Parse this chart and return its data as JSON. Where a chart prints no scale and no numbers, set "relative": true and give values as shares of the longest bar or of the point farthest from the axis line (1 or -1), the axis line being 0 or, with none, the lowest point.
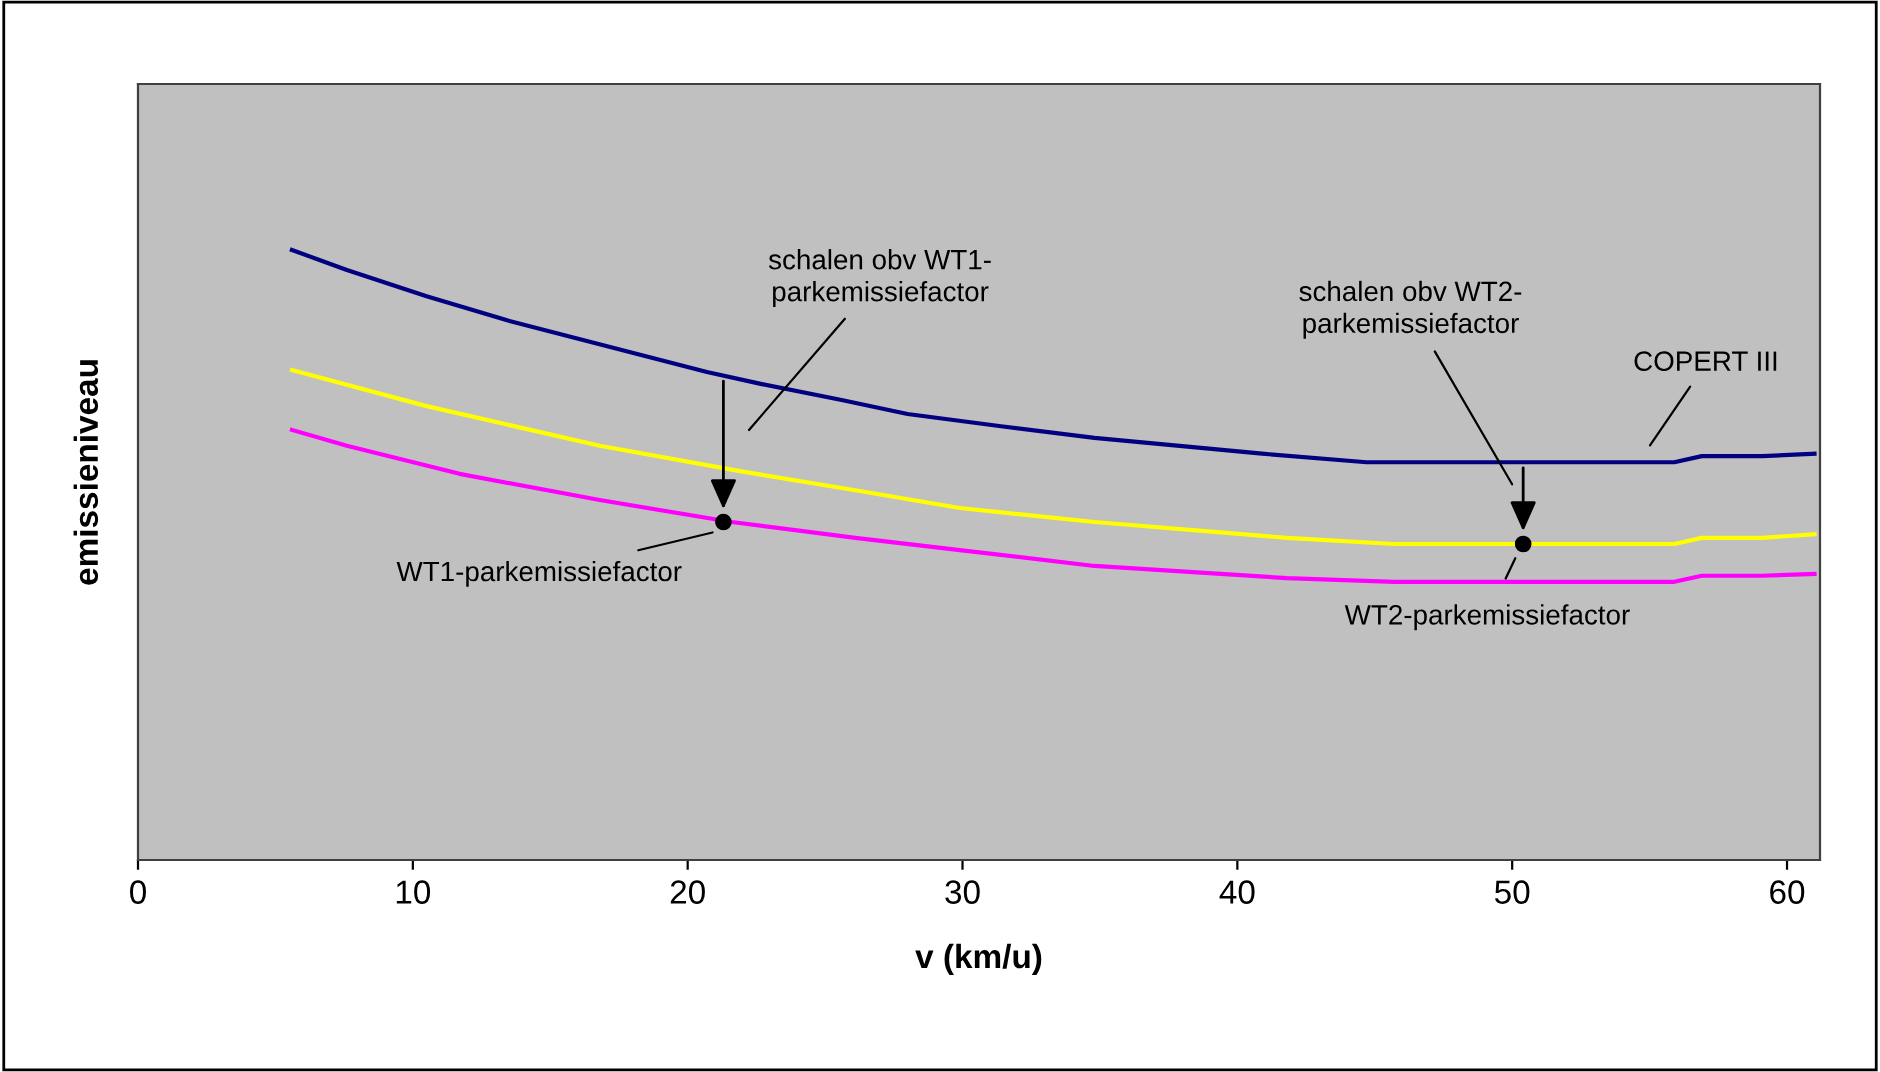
{
  "chart_data": {
    "type": "line",
    "relative": true,
    "xlabel": "v (km/u)",
    "ylabel": "emissieniveau",
    "xlim": [
      0,
      61.2
    ],
    "xticks": [
      0,
      10,
      20,
      30,
      40,
      50,
      60
    ],
    "grid": false,
    "legend": false,
    "marker": "none",
    "line_style": "solid",
    "tick_labels": "x",
    "series": [
      {
        "name": "COPERT III",
        "color": "#000080",
        "x": [
          5.6,
          7.6,
          10.5,
          13.4,
          17.6,
          20.7,
          22.7,
          25.6,
          28.0,
          31.4,
          34.8,
          40.9,
          44.7,
          55.9,
          56.9,
          59.1,
          61.0
        ],
        "values": [
          1.0,
          0.967,
          0.924,
          0.885,
          0.836,
          0.8,
          0.78,
          0.754,
          0.731,
          0.711,
          0.692,
          0.666,
          0.652,
          0.652,
          0.662,
          0.662,
          0.666
        ]
      },
      {
        "color": "#ffff00",
        "x": [
          5.6,
          10.5,
          16.8,
          21.7,
          26.1,
          29.9,
          34.8,
          41.8,
          45.7,
          55.9,
          56.9,
          59.1,
          61.0
        ],
        "values": [
          0.803,
          0.744,
          0.679,
          0.639,
          0.606,
          0.577,
          0.554,
          0.528,
          0.518,
          0.518,
          0.528,
          0.528,
          0.534
        ]
      },
      {
        "color": "#ff00ff",
        "x": [
          5.6,
          7.6,
          11.7,
          16.8,
          21.6,
          26.1,
          29.9,
          34.8,
          41.8,
          45.7,
          55.9,
          56.9,
          59.1,
          61.0
        ],
        "values": [
          0.705,
          0.679,
          0.633,
          0.59,
          0.554,
          0.528,
          0.508,
          0.482,
          0.462,
          0.456,
          0.456,
          0.466,
          0.466,
          0.469
        ]
      }
    ],
    "annotations": [
      "schalen obv WT1-\nparkemissiefactor",
      {
        "text": "WT1-parkemissiefactor",
        "x": 21.3,
        "y": 0.554
      },
      "schalen obv WT2-\nparkemissiefactor",
      {
        "text": "WT2-parkemissiefactor",
        "x": 50.4,
        "y": 0.518
      }
    ]
  }
}
